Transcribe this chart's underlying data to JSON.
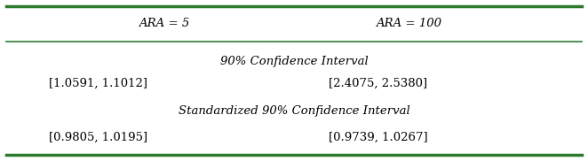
{
  "header_col1": "ARA = 5",
  "header_col2": "ARA = 100",
  "row1_label": "90% Confidence Interval",
  "row1_col1": "[1.0591, 1.1012]",
  "row1_col2": "[2.4075, 2.5380]",
  "row2_label": "Standardized 90% Confidence Interval",
  "row2_col1": "[0.9805, 1.0195]",
  "row2_col2": "[0.9739, 1.0267]",
  "line_color": "#2d7a2d",
  "bg_color": "#ffffff",
  "text_color": "#000000",
  "fontsize": 9.5
}
